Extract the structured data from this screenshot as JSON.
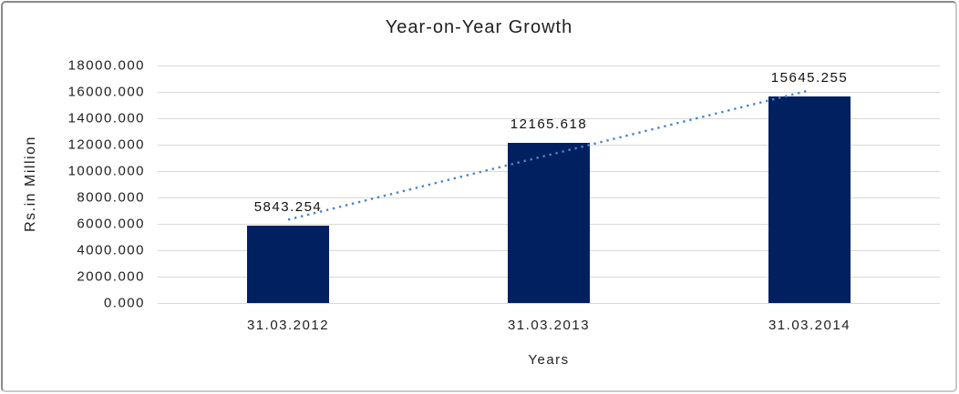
{
  "chart_data": {
    "type": "bar",
    "title": "Year-on-Year Growth",
    "xlabel": "Years",
    "ylabel": "Rs.in Million",
    "categories": [
      "31.03.2012",
      "31.03.2013",
      "31.03.2014"
    ],
    "values": [
      5843.254,
      12165.618,
      15645.255
    ],
    "value_labels": [
      "5843.254",
      "12165.618",
      "15645.255"
    ],
    "ylim": [
      0,
      18000
    ],
    "ytick_step": 2000,
    "yticks": [
      "18000.000",
      "16000.000",
      "14000.000",
      "12000.000",
      "10000.000",
      "8000.000",
      "6000.000",
      "4000.000",
      "2000.000",
      "0.000"
    ],
    "grid": "horizontal",
    "legend": "none",
    "bar_color": "#002060",
    "gridline_color": "#d9d9d9",
    "text_color": "#1f1f1f",
    "trendline": {
      "type": "linear",
      "style": "dotted",
      "color": "#4a86c8"
    }
  }
}
